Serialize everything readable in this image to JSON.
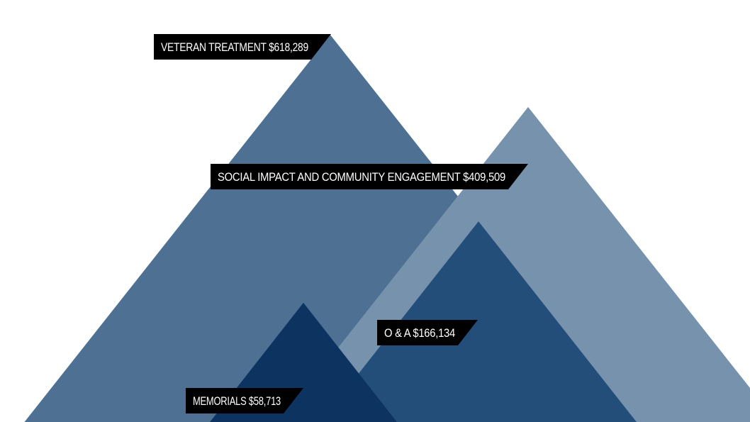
{
  "chart_data": {
    "type": "area",
    "title": "",
    "series": [
      {
        "name": "VETERAN TREATMENT",
        "label": "VETERAN TREATMENT $618,289",
        "value": 618289,
        "color": "#4d7093"
      },
      {
        "name": "SOCIAL IMPACT AND COMMUNITY ENGAGEMENT",
        "label": "SOCIAL IMPACT AND COMMUNITY ENGAGEMENT $409,509",
        "value": 409509,
        "color": "#7692ad"
      },
      {
        "name": "O & A",
        "label": "O & A $166,134",
        "value": 166134,
        "color": "#234e79"
      },
      {
        "name": "MEMORIALS",
        "label": "MEMORIALS $58,713",
        "value": 58713,
        "color": "#0d3460"
      }
    ]
  }
}
